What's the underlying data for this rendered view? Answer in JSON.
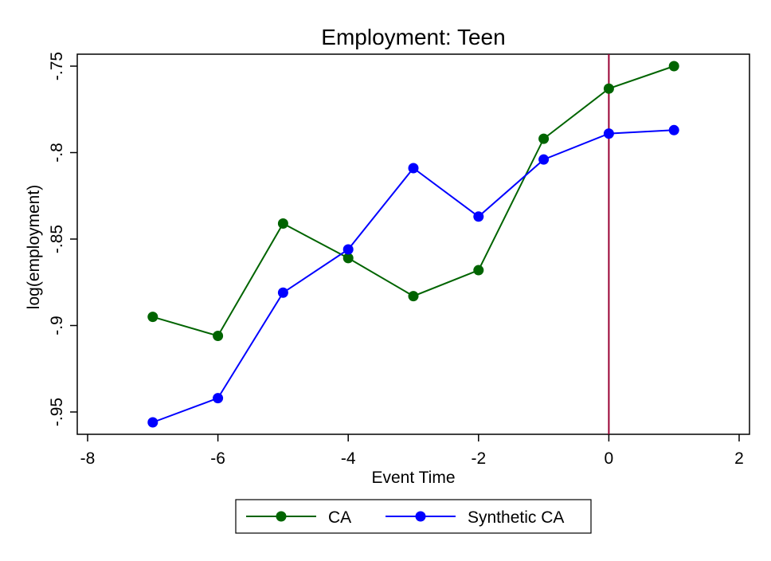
{
  "chart_data": {
    "type": "line",
    "title": "Employment: Teen",
    "xlabel": "Event Time",
    "ylabel": "log(employment)",
    "xlim": [
      -8,
      2
    ],
    "ylim": [
      -0.964,
      -0.745
    ],
    "x_ticks": [
      -8,
      -6,
      -4,
      -2,
      0,
      2
    ],
    "x_tick_labels": [
      "-8",
      "-6",
      "-4",
      "-2",
      "0",
      "2"
    ],
    "y_ticks": [
      -0.75,
      -0.8,
      -0.85,
      -0.9,
      -0.95
    ],
    "y_tick_labels": [
      "-.75",
      "-.8",
      "-.85",
      "-.9",
      "-.95"
    ],
    "grid": false,
    "legend_position": "bottom",
    "vertical_line": {
      "x": 0,
      "color": "#990033"
    },
    "series": [
      {
        "name": "CA",
        "color": "#006400",
        "x": [
          -7,
          -6,
          -5,
          -4,
          -3,
          -2,
          -1,
          0,
          1
        ],
        "y": [
          -0.895,
          -0.906,
          -0.841,
          -0.861,
          -0.883,
          -0.868,
          -0.792,
          -0.763,
          -0.75
        ]
      },
      {
        "name": "Synthetic CA",
        "color": "#0000ff",
        "x": [
          -7,
          -6,
          -5,
          -4,
          -3,
          -2,
          -1,
          0,
          1
        ],
        "y": [
          -0.956,
          -0.942,
          -0.881,
          -0.856,
          -0.809,
          -0.837,
          -0.804,
          -0.789,
          -0.787
        ]
      }
    ]
  }
}
